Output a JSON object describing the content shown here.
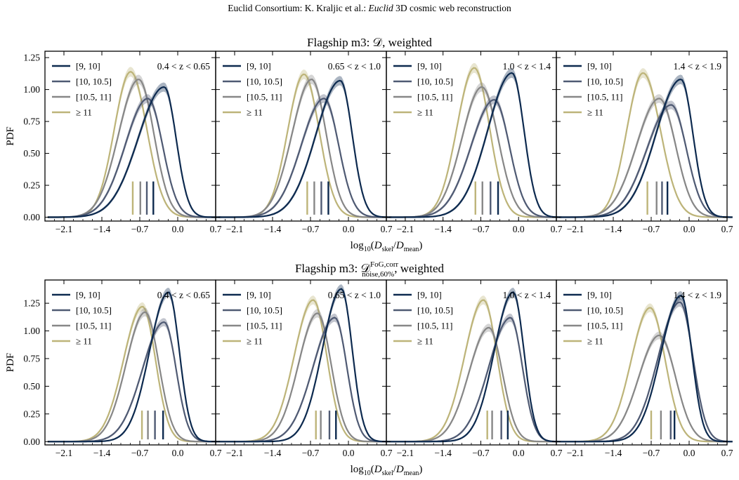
{
  "header": {
    "prefix": "Euclid Consortium: K. Kraljic et al.: ",
    "italic": "Euclid",
    "suffix": " 3D cosmic web reconstruction"
  },
  "colors": {
    "bin_9_10": "#0d2a4f",
    "bin_10_105": "#4f5a73",
    "bin_105_11": "#878787",
    "bin_ge11": "#bdb479"
  },
  "chart_data": [
    {
      "type": "line",
      "title": "Flagship m3: 𝒟, weighted",
      "xlabel": "log10(Dskel/Dmean)",
      "ylabel": "PDF",
      "xlim": [
        -2.45,
        0.7
      ],
      "ylim": [
        -0.03,
        1.3
      ],
      "xticks": [
        -2.1,
        -1.4,
        -0.7,
        0.0,
        0.7
      ],
      "xtick_labels": [
        "−2.1",
        "−1.4",
        "−0.7",
        "0.0",
        "0.7"
      ],
      "yticks": [
        0.0,
        0.25,
        0.5,
        0.75,
        1.0,
        1.25
      ],
      "ytick_labels": [
        "0.00",
        "0.25",
        "0.50",
        "0.75",
        "1.00",
        "1.25"
      ],
      "legend_labels": [
        "[9, 10]",
        "[10, 10.5]",
        "[10.5, 11]",
        "≥ 11"
      ],
      "legend_position": "top-left",
      "panels": [
        {
          "annotation": "0.4 < z < 0.65",
          "series": [
            {
              "key": "9_10",
              "mu": -0.25,
              "sl": 0.48,
              "sr": 0.22,
              "peak": 1.02,
              "median": -0.45
            },
            {
              "key": "10_105",
              "mu": -0.55,
              "sl": 0.42,
              "sr": 0.27,
              "peak": 0.93,
              "median": -0.57
            },
            {
              "key": "105_11",
              "mu": -0.72,
              "sl": 0.37,
              "sr": 0.28,
              "peak": 1.08,
              "median": -0.69
            },
            {
              "key": "ge11",
              "mu": -0.87,
              "sl": 0.3,
              "sr": 0.3,
              "peak": 1.14,
              "median": -0.83
            }
          ]
        },
        {
          "annotation": "0.65 < z < 1.0",
          "series": [
            {
              "key": "9_10",
              "mu": -0.15,
              "sl": 0.45,
              "sr": 0.22,
              "peak": 1.07,
              "median": -0.37
            },
            {
              "key": "10_105",
              "mu": -0.45,
              "sl": 0.42,
              "sr": 0.27,
              "peak": 0.93,
              "median": -0.5
            },
            {
              "key": "105_11",
              "mu": -0.68,
              "sl": 0.36,
              "sr": 0.27,
              "peak": 1.08,
              "median": -0.63
            },
            {
              "key": "ge11",
              "mu": -0.82,
              "sl": 0.3,
              "sr": 0.28,
              "peak": 1.12,
              "median": -0.76
            }
          ]
        },
        {
          "annotation": "1.0 < z < 1.4",
          "series": [
            {
              "key": "9_10",
              "mu": -0.12,
              "sl": 0.45,
              "sr": 0.22,
              "peak": 1.13,
              "median": -0.38
            },
            {
              "key": "10_105",
              "mu": -0.45,
              "sl": 0.43,
              "sr": 0.28,
              "peak": 0.92,
              "median": -0.52
            },
            {
              "key": "105_11",
              "mu": -0.68,
              "sl": 0.37,
              "sr": 0.3,
              "peak": 1.02,
              "median": -0.67
            },
            {
              "key": "ge11",
              "mu": -0.82,
              "sl": 0.32,
              "sr": 0.28,
              "peak": 1.17,
              "median": -0.8
            }
          ]
        },
        {
          "annotation": "1.4 < z < 1.9",
          "series": [
            {
              "key": "9_10",
              "mu": -0.15,
              "sl": 0.46,
              "sr": 0.22,
              "peak": 1.08,
              "median": -0.4
            },
            {
              "key": "10_105",
              "mu": -0.33,
              "sl": 0.45,
              "sr": 0.28,
              "peak": 0.88,
              "median": -0.5
            },
            {
              "key": "105_11",
              "mu": -0.55,
              "sl": 0.42,
              "sr": 0.3,
              "peak": 0.93,
              "median": -0.6
            },
            {
              "key": "ge11",
              "mu": -0.85,
              "sl": 0.3,
              "sr": 0.32,
              "peak": 1.13,
              "median": -0.77
            }
          ]
        }
      ]
    },
    {
      "type": "line",
      "title_parts": {
        "prefix": "Flagship m3: 𝒟",
        "sup": "FoG,corr",
        "sub": "noise,60%",
        "suffix": ", weighted"
      },
      "xlabel": "log10(Dskel/Dmean)",
      "ylabel": "PDF",
      "xlim": [
        -2.45,
        0.7
      ],
      "ylim": [
        -0.03,
        1.46
      ],
      "xticks": [
        -2.1,
        -1.4,
        -0.7,
        0.0,
        0.7
      ],
      "xtick_labels": [
        "−2.1",
        "−1.4",
        "−0.7",
        "0.0",
        "0.7"
      ],
      "yticks": [
        0.0,
        0.25,
        0.5,
        0.75,
        1.0,
        1.25
      ],
      "ytick_labels": [
        "0.00",
        "0.25",
        "0.50",
        "0.75",
        "1.00",
        "1.25"
      ],
      "legend_labels": [
        "[9, 10]",
        "[10, 10.5]",
        "[10.5, 11]",
        "≥ 11"
      ],
      "legend_position": "top-left",
      "panels": [
        {
          "annotation": "0.4 < z < 0.65",
          "series": [
            {
              "key": "9_10",
              "mu": -0.17,
              "sl": 0.35,
              "sr": 0.2,
              "peak": 1.35,
              "median": -0.27
            },
            {
              "key": "10_105",
              "mu": -0.25,
              "sl": 0.4,
              "sr": 0.22,
              "peak": 1.08,
              "median": -0.42
            },
            {
              "key": "105_11",
              "mu": -0.6,
              "sl": 0.35,
              "sr": 0.25,
              "peak": 1.17,
              "median": -0.55
            },
            {
              "key": "ge11",
              "mu": -0.65,
              "sl": 0.35,
              "sr": 0.24,
              "peak": 1.22,
              "median": -0.66
            }
          ]
        },
        {
          "annotation": "0.65 < z < 1.0",
          "series": [
            {
              "key": "9_10",
              "mu": -0.13,
              "sl": 0.35,
              "sr": 0.2,
              "peak": 1.38,
              "median": -0.23
            },
            {
              "key": "10_105",
              "mu": -0.25,
              "sl": 0.4,
              "sr": 0.22,
              "peak": 1.12,
              "median": -0.35
            },
            {
              "key": "105_11",
              "mu": -0.57,
              "sl": 0.35,
              "sr": 0.25,
              "peak": 1.16,
              "median": -0.51
            },
            {
              "key": "ge11",
              "mu": -0.65,
              "sl": 0.35,
              "sr": 0.25,
              "peak": 1.28,
              "median": -0.6
            }
          ]
        },
        {
          "annotation": "1.0 < z < 1.4",
          "series": [
            {
              "key": "9_10",
              "mu": -0.1,
              "sl": 0.35,
              "sr": 0.2,
              "peak": 1.35,
              "median": -0.2
            },
            {
              "key": "10_105",
              "mu": -0.15,
              "sl": 0.4,
              "sr": 0.22,
              "peak": 1.12,
              "median": -0.32
            },
            {
              "key": "105_11",
              "mu": -0.55,
              "sl": 0.37,
              "sr": 0.25,
              "peak": 1.03,
              "median": -0.49
            },
            {
              "key": "ge11",
              "mu": -0.65,
              "sl": 0.35,
              "sr": 0.25,
              "peak": 1.28,
              "median": -0.58
            }
          ]
        },
        {
          "annotation": "1.4 < z < 1.9",
          "series": [
            {
              "key": "9_10",
              "mu": -0.15,
              "sl": 0.37,
              "sr": 0.2,
              "peak": 1.32,
              "median": -0.27
            },
            {
              "key": "10_105",
              "mu": -0.17,
              "sl": 0.4,
              "sr": 0.24,
              "peak": 1.26,
              "median": -0.34
            },
            {
              "key": "105_11",
              "mu": -0.55,
              "sl": 0.38,
              "sr": 0.3,
              "peak": 0.96,
              "median": -0.52
            },
            {
              "key": "ge11",
              "mu": -0.72,
              "sl": 0.35,
              "sr": 0.28,
              "peak": 1.21,
              "median": -0.7
            }
          ]
        }
      ]
    }
  ]
}
